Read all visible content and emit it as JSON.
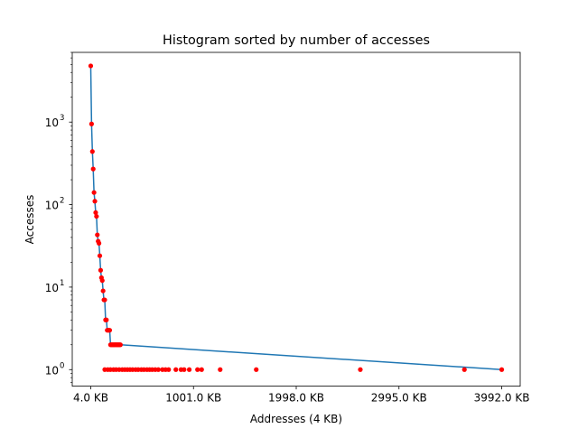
{
  "chart_data": {
    "type": "line",
    "title": "Histogram sorted by number of accesses",
    "xlabel": "Addresses (4 KB)",
    "ylabel": "Accesses",
    "yscale": "log",
    "xlim": [
      -175.4,
      4171.4
    ],
    "ylim": [
      0.63,
      7000
    ],
    "grid": false,
    "x_ticks": [
      4,
      1001,
      1998,
      2995,
      3992
    ],
    "x_tick_labels": [
      "4.0 KB",
      "1001.0 KB",
      "1998.0 KB",
      "2995.0 KB",
      "3992.0 KB"
    ],
    "y_ticks": [
      1,
      10,
      100,
      1000
    ],
    "y_tick_labels": [
      "10",
      "10",
      "10",
      "10"
    ],
    "y_tick_exponents": [
      "0",
      "1",
      "2",
      "3"
    ],
    "colors": {
      "line": "#1f77b4",
      "points": "#ff0000",
      "axes": "#000000"
    },
    "line": {
      "x": [
        4,
        12,
        20,
        28,
        36,
        44,
        52,
        60,
        68,
        76,
        84,
        92,
        100,
        108,
        116,
        124,
        132,
        140,
        148,
        156,
        164,
        172,
        180,
        188,
        196,
        204,
        212,
        220,
        228,
        236,
        244,
        252,
        260,
        268,
        276,
        284,
        292,
        3992
      ],
      "y": [
        4800,
        950,
        440,
        270,
        140,
        110,
        80,
        72,
        43,
        36,
        34,
        24,
        16,
        13,
        12,
        9,
        7,
        7,
        4,
        4,
        3,
        3,
        3,
        3,
        2,
        2,
        2,
        2,
        2,
        2,
        2,
        2,
        2,
        2,
        2,
        2,
        2,
        1
      ]
    },
    "points": {
      "x": [
        4,
        12,
        20,
        28,
        36,
        44,
        52,
        60,
        68,
        76,
        84,
        92,
        100,
        108,
        116,
        124,
        132,
        140,
        148,
        156,
        164,
        172,
        180,
        188,
        196,
        204,
        212,
        220,
        228,
        236,
        244,
        252,
        260,
        268,
        276,
        284,
        292,
        140,
        170,
        195,
        225,
        250,
        280,
        310,
        335,
        360,
        385,
        410,
        440,
        465,
        495,
        520,
        550,
        575,
        600,
        630,
        660,
        700,
        730,
        760,
        830,
        880,
        910,
        960,
        1040,
        1080,
        1260,
        1610,
        2620,
        3630,
        3992
      ],
      "y": [
        4800,
        950,
        440,
        270,
        140,
        110,
        80,
        72,
        43,
        36,
        34,
        24,
        16,
        13,
        12,
        9,
        7,
        7,
        4,
        4,
        3,
        3,
        3,
        3,
        2,
        2,
        2,
        2,
        2,
        2,
        2,
        2,
        2,
        2,
        2,
        2,
        2,
        1,
        1,
        1,
        1,
        1,
        1,
        1,
        1,
        1,
        1,
        1,
        1,
        1,
        1,
        1,
        1,
        1,
        1,
        1,
        1,
        1,
        1,
        1,
        1,
        1,
        1,
        1,
        1,
        1,
        1,
        1,
        1,
        1,
        1
      ]
    }
  }
}
